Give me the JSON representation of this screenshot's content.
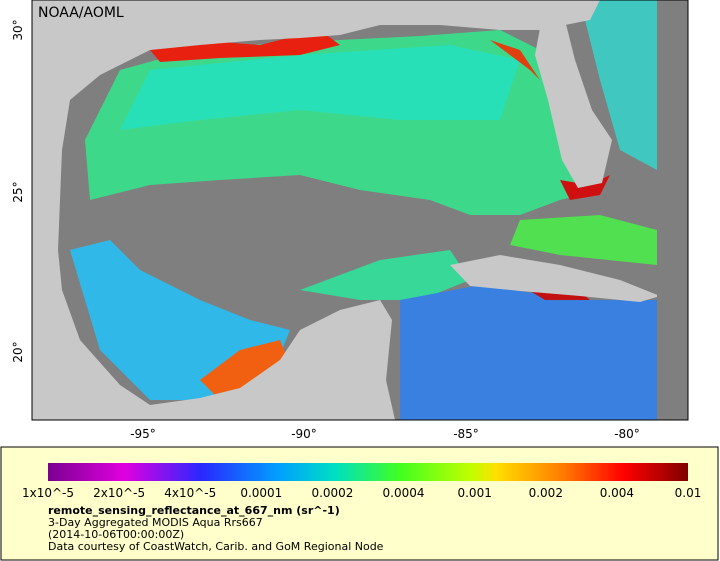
{
  "map": {
    "credit": "NOAA/AOML",
    "lat_labels": [
      "30°",
      "25°",
      "20°"
    ],
    "lon_labels": [
      "-95°",
      "-90°",
      "-85°",
      "-80°"
    ]
  },
  "colorbar": {
    "tick_labels": [
      "1x10^-5",
      "2x10^-5",
      "4x10^-5",
      "0.0001",
      "0.0002",
      "0.0004",
      "0.001",
      "0.002",
      "0.004",
      "0.01"
    ],
    "title": "remote_sensing_reflectance_at_667_nm (sr^-1)",
    "description": [
      "3-Day Aggregated MODIS Aqua Rrs667",
      "(2014-10-06T00:00:00Z)",
      "Data courtesy of CoastWatch, Carib. and GoM Regional Node"
    ]
  }
}
